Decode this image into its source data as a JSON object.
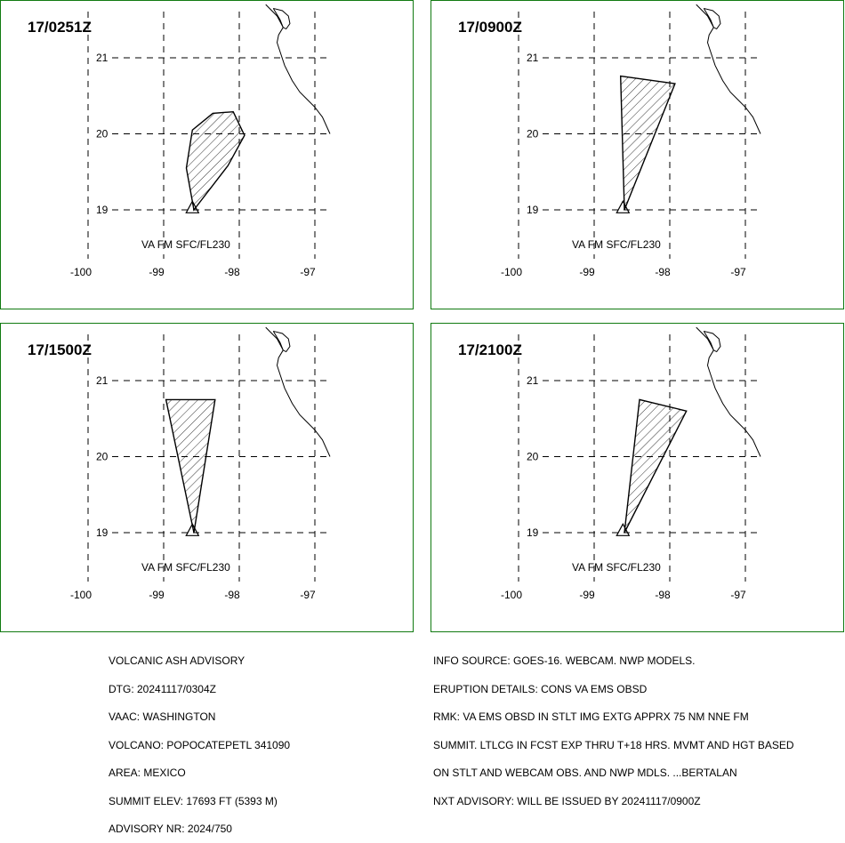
{
  "panels": [
    {
      "title": "17/0251Z",
      "label": "VA FM SFC/FL230",
      "polygon": [
        [
          -98.6,
          19.0
        ],
        [
          -98.7,
          19.55
        ],
        [
          -98.62,
          20.05
        ],
        [
          -98.35,
          20.27
        ],
        [
          -98.08,
          20.29
        ],
        [
          -97.93,
          19.98
        ],
        [
          -98.15,
          19.58
        ],
        [
          -98.6,
          19.0
        ]
      ]
    },
    {
      "title": "17/0900Z",
      "label": "VA FM SFC/FL230",
      "polygon": [
        [
          -98.6,
          19.0
        ],
        [
          -98.65,
          20.76
        ],
        [
          -97.93,
          20.66
        ],
        [
          -98.6,
          19.0
        ]
      ]
    },
    {
      "title": "17/1500Z",
      "label": "VA FM SFC/FL230",
      "polygon": [
        [
          -98.6,
          19.0
        ],
        [
          -98.97,
          20.75
        ],
        [
          -98.32,
          20.75
        ],
        [
          -98.6,
          19.0
        ]
      ]
    },
    {
      "title": "17/2100Z",
      "label": "VA FM SFC/FL230",
      "polygon": [
        [
          -98.6,
          19.0
        ],
        [
          -98.4,
          20.75
        ],
        [
          -97.78,
          20.6
        ],
        [
          -98.6,
          19.0
        ]
      ]
    }
  ],
  "map": {
    "lon_ticks": [
      "-100",
      "-99",
      "-98",
      "-97"
    ],
    "lat_ticks": [
      "21",
      "20",
      "19"
    ],
    "volcano": [
      -98.62,
      19.02
    ],
    "coastline": [
      [
        -97.65,
        21.7
      ],
      [
        -97.5,
        21.55
      ],
      [
        -97.42,
        21.4
      ],
      [
        -97.48,
        21.3
      ],
      [
        -97.5,
        21.2
      ],
      [
        -97.45,
        21.05
      ],
      [
        -97.4,
        20.9
      ],
      [
        -97.3,
        20.7
      ],
      [
        -97.2,
        20.55
      ],
      [
        -97.1,
        20.45
      ],
      [
        -97.0,
        20.35
      ],
      [
        -96.9,
        20.22
      ],
      [
        -96.8,
        20.0
      ]
    ],
    "lagoon": [
      [
        -97.55,
        21.65
      ],
      [
        -97.43,
        21.62
      ],
      [
        -97.35,
        21.55
      ],
      [
        -97.33,
        21.45
      ],
      [
        -97.38,
        21.38
      ],
      [
        -97.42,
        21.4
      ],
      [
        -97.46,
        21.5
      ],
      [
        -97.55,
        21.65
      ]
    ]
  },
  "advisory_left": [
    "VOLCANIC ASH ADVISORY",
    "DTG: 20241117/0304Z",
    "VAAC: WASHINGTON",
    "VOLCANO: POPOCATEPETL 341090",
    "AREA: MEXICO",
    "SUMMIT ELEV: 17693 FT (5393 M)",
    "ADVISORY NR: 2024/750"
  ],
  "advisory_right": [
    "INFO SOURCE: GOES-16. WEBCAM. NWP MODELS.",
    "ERUPTION DETAILS: CONS VA EMS OBSD",
    "RMK: VA EMS OBSD IN STLT IMG EXTG APPRX 75 NM NNE FM",
    "SUMMIT. LTLCG IN FCST EXP THRU T+18 HRS. MVMT AND HGT BASED",
    "ON STLT AND WEBCAM OBS. AND NWP MDLS. ...BERTALAN",
    "NXT ADVISORY: WILL BE ISSUED BY 20241117/0900Z"
  ]
}
